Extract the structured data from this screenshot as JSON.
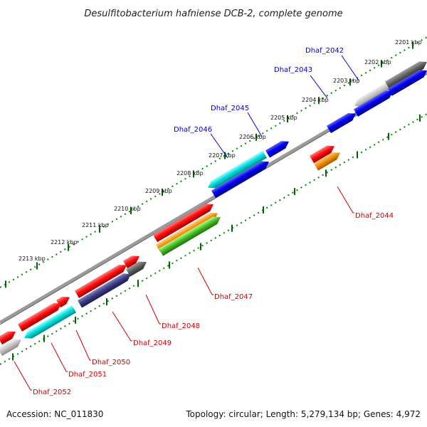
{
  "title": "Desulfitobacterium hafniense DCB-2, complete genome",
  "footer": {
    "accession": "Accession: NC_011830",
    "summary": "Topology: circular; Length: 5,279,134 bp; Genes: 4,972"
  },
  "kbp_labels": [
    "2201 kbp",
    "2202 kbp",
    "2203 kbp",
    "2204 kbp",
    "2205 kbp",
    "2206 kbp",
    "2207 kbp",
    "2208 kbp",
    "2209 kbp",
    "2210 kbp",
    "2211 kbp",
    "2212 kbp",
    "2213 kbp"
  ],
  "genes_top": [
    "Dhaf_2042",
    "Dhaf_2043",
    "Dhaf_2045",
    "Dhaf_2046"
  ],
  "genes_bottom": [
    "Dhaf_2044",
    "Dhaf_2047",
    "Dhaf_2048",
    "Dhaf_2049",
    "Dhaf_2050",
    "Dhaf_2051",
    "Dhaf_2052"
  ],
  "colors": {
    "red": "#e8000a",
    "blue": "#0000dd",
    "cyan": "#00cccc",
    "gray_dark": "#555555",
    "gray_light": "#bbbbbb",
    "orange": "#f08c00",
    "green": "#44bb22",
    "slate": "#3a3a80",
    "tick_green": "#008800",
    "backbone": "#888888",
    "top_label": "#0000cc",
    "bottom_label": "#cc0000"
  }
}
